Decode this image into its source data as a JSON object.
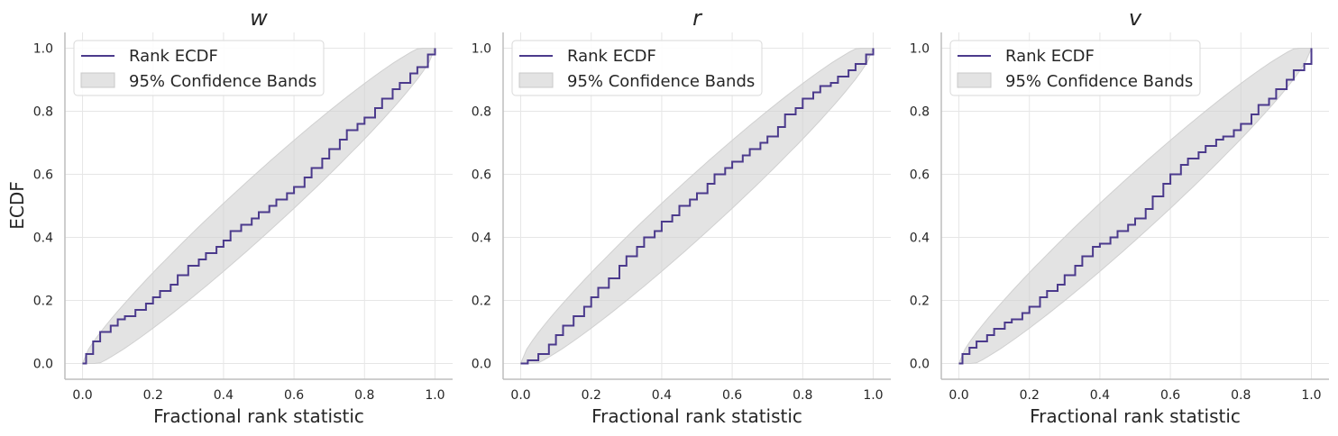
{
  "figure": {
    "ylabel": "ECDF",
    "colors": {
      "line": "#4B3A8C",
      "band": "#D0D0D0",
      "grid": "#E6E6E6",
      "axis": "#BDBDBD",
      "text": "#262626"
    }
  },
  "chart_data": [
    {
      "type": "line",
      "title": "w",
      "xlabel": "Fractional rank statistic",
      "ylabel": "ECDF",
      "xlim": [
        -0.05,
        1.05
      ],
      "ylim": [
        -0.05,
        1.05
      ],
      "xticks": [
        "0.0",
        "0.2",
        "0.4",
        "0.6",
        "0.8",
        "1.0"
      ],
      "yticks": [
        "0.0",
        "0.2",
        "0.4",
        "0.6",
        "0.8",
        "1.0"
      ],
      "grid": true,
      "legend_position": "top-left",
      "legend": [
        "Rank ECDF",
        "95% Confidence Bands"
      ],
      "series": [
        {
          "name": "Rank ECDF",
          "x": [
            0.0,
            0.01,
            0.03,
            0.05,
            0.08,
            0.1,
            0.12,
            0.15,
            0.18,
            0.2,
            0.22,
            0.25,
            0.27,
            0.3,
            0.33,
            0.35,
            0.38,
            0.4,
            0.42,
            0.45,
            0.48,
            0.5,
            0.53,
            0.55,
            0.58,
            0.6,
            0.63,
            0.65,
            0.68,
            0.7,
            0.73,
            0.75,
            0.78,
            0.8,
            0.83,
            0.85,
            0.88,
            0.9,
            0.93,
            0.95,
            0.98,
            1.0
          ],
          "y": [
            0.0,
            0.03,
            0.07,
            0.1,
            0.12,
            0.14,
            0.15,
            0.17,
            0.19,
            0.21,
            0.23,
            0.25,
            0.28,
            0.31,
            0.33,
            0.35,
            0.37,
            0.39,
            0.42,
            0.44,
            0.46,
            0.48,
            0.5,
            0.52,
            0.54,
            0.56,
            0.59,
            0.62,
            0.65,
            0.68,
            0.71,
            0.74,
            0.76,
            0.78,
            0.81,
            0.84,
            0.87,
            0.89,
            0.92,
            0.94,
            0.98,
            1.0
          ]
        }
      ]
    },
    {
      "type": "line",
      "title": "r",
      "xlabel": "Fractional rank statistic",
      "xlim": [
        -0.05,
        1.05
      ],
      "ylim": [
        -0.05,
        1.05
      ],
      "xticks": [
        "0.0",
        "0.2",
        "0.4",
        "0.6",
        "0.8",
        "1.0"
      ],
      "yticks": [
        "0.0",
        "0.2",
        "0.4",
        "0.6",
        "0.8",
        "1.0"
      ],
      "grid": true,
      "legend_position": "top-left",
      "legend": [
        "Rank ECDF",
        "95% Confidence Bands"
      ],
      "series": [
        {
          "name": "Rank ECDF",
          "x": [
            0.0,
            0.02,
            0.05,
            0.08,
            0.1,
            0.12,
            0.15,
            0.18,
            0.2,
            0.22,
            0.25,
            0.28,
            0.3,
            0.33,
            0.35,
            0.38,
            0.4,
            0.43,
            0.45,
            0.48,
            0.5,
            0.53,
            0.55,
            0.58,
            0.6,
            0.63,
            0.65,
            0.68,
            0.7,
            0.73,
            0.75,
            0.78,
            0.8,
            0.83,
            0.85,
            0.88,
            0.9,
            0.93,
            0.95,
            0.98,
            1.0
          ],
          "y": [
            0.0,
            0.01,
            0.03,
            0.06,
            0.09,
            0.12,
            0.15,
            0.18,
            0.21,
            0.24,
            0.27,
            0.31,
            0.34,
            0.37,
            0.4,
            0.42,
            0.45,
            0.47,
            0.5,
            0.52,
            0.54,
            0.57,
            0.6,
            0.62,
            0.64,
            0.66,
            0.68,
            0.7,
            0.72,
            0.75,
            0.79,
            0.81,
            0.84,
            0.86,
            0.88,
            0.89,
            0.91,
            0.93,
            0.95,
            0.98,
            1.0
          ]
        }
      ]
    },
    {
      "type": "line",
      "title": "v",
      "xlabel": "Fractional rank statistic",
      "xlim": [
        -0.05,
        1.05
      ],
      "ylim": [
        -0.05,
        1.05
      ],
      "xticks": [
        "0.0",
        "0.2",
        "0.4",
        "0.6",
        "0.8",
        "1.0"
      ],
      "yticks": [
        "0.0",
        "0.2",
        "0.4",
        "0.6",
        "0.8",
        "1.0"
      ],
      "grid": true,
      "legend_position": "top-left",
      "legend": [
        "Rank ECDF",
        "95% Confidence Bands"
      ],
      "series": [
        {
          "name": "Rank ECDF",
          "x": [
            0.0,
            0.01,
            0.03,
            0.05,
            0.08,
            0.1,
            0.13,
            0.15,
            0.18,
            0.2,
            0.23,
            0.25,
            0.28,
            0.3,
            0.33,
            0.35,
            0.38,
            0.4,
            0.43,
            0.45,
            0.48,
            0.5,
            0.53,
            0.55,
            0.58,
            0.6,
            0.63,
            0.65,
            0.68,
            0.7,
            0.73,
            0.75,
            0.78,
            0.8,
            0.83,
            0.85,
            0.88,
            0.9,
            0.93,
            0.95,
            0.98,
            1.0
          ],
          "y": [
            0.0,
            0.03,
            0.05,
            0.07,
            0.09,
            0.11,
            0.13,
            0.14,
            0.16,
            0.18,
            0.21,
            0.23,
            0.25,
            0.28,
            0.31,
            0.34,
            0.37,
            0.38,
            0.4,
            0.42,
            0.44,
            0.46,
            0.49,
            0.53,
            0.57,
            0.6,
            0.63,
            0.65,
            0.67,
            0.69,
            0.71,
            0.72,
            0.74,
            0.76,
            0.79,
            0.82,
            0.84,
            0.87,
            0.9,
            0.93,
            0.95,
            1.0
          ]
        }
      ]
    }
  ]
}
